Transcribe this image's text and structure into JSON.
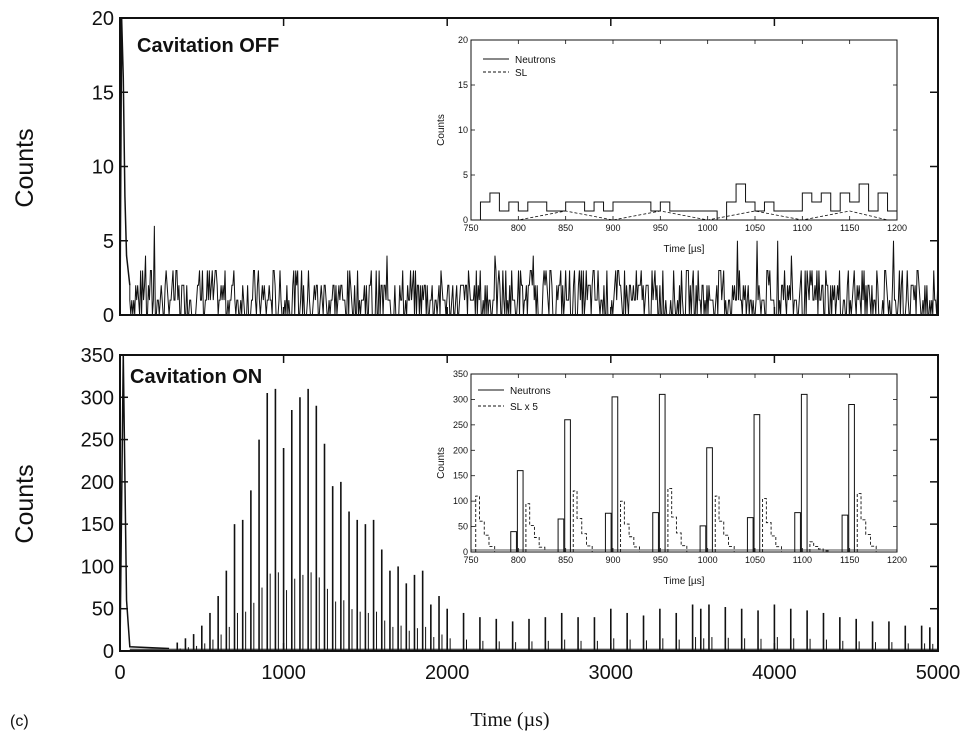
{
  "panel_label": "(c)",
  "colors": {
    "ink": "#111111",
    "background": "#ffffff"
  },
  "chart_data": [
    {
      "id": "off-main",
      "type": "line",
      "title": "Cavitation OFF",
      "xlabel": "",
      "ylabel": "Counts",
      "xlim": [
        0,
        5000
      ],
      "ylim": [
        0,
        20
      ],
      "x_ticks": [
        0,
        1000,
        2000,
        3000,
        4000,
        5000
      ],
      "y_ticks": [
        0,
        5,
        10,
        15,
        20
      ],
      "x_tick_labels_shown": false,
      "series": [
        {
          "style": "solid",
          "description_values": {
            "x": [
              0,
              10,
              20,
              30,
              40,
              50,
              60,
              80,
              100,
              150,
              200,
              220,
              250,
              300,
              400,
              500,
              600,
              700,
              800,
              900,
              1000,
              1500,
              2000,
              2500,
              3000,
              3500,
              4000,
              4500,
              5000
            ],
            "y": [
              0,
              20,
              16,
              8,
              4,
              3,
              2,
              2,
              1,
              2,
              3,
              6,
              2,
              2,
              1,
              2,
              2,
              1,
              2,
              1,
              2,
              1,
              2,
              1,
              2,
              1,
              2,
              1,
              1
            ]
          }
        }
      ]
    },
    {
      "id": "off-inset",
      "type": "line",
      "title": "",
      "xlabel": "Time [µs]",
      "ylabel": "Counts",
      "xlim": [
        750,
        1200
      ],
      "ylim": [
        0,
        20
      ],
      "x_ticks": [
        750,
        800,
        850,
        900,
        950,
        1000,
        1050,
        1100,
        1150,
        1200
      ],
      "y_ticks": [
        0,
        5,
        10,
        15,
        20
      ],
      "legend": {
        "placement": "top-left",
        "entries": [
          "Neutrons",
          "SL"
        ]
      },
      "series": [
        {
          "name": "Neutrons",
          "style": "solid",
          "x": [
            760,
            770,
            780,
            790,
            800,
            810,
            820,
            830,
            840,
            850,
            860,
            870,
            880,
            890,
            900,
            910,
            920,
            930,
            940,
            950,
            960,
            970,
            980,
            990,
            1000,
            1010,
            1020,
            1030,
            1040,
            1050,
            1060,
            1070,
            1080,
            1090,
            1100,
            1110,
            1120,
            1130,
            1140,
            1150,
            1160,
            1170,
            1180,
            1190
          ],
          "y": [
            2,
            3,
            1,
            2,
            1,
            2,
            2,
            1,
            1,
            2,
            2,
            1,
            2,
            1,
            2,
            2,
            2,
            2,
            1,
            2,
            1,
            1,
            1,
            1,
            1,
            0,
            2,
            4,
            2,
            1,
            2,
            1,
            1,
            1,
            3,
            2,
            3,
            1,
            3,
            2,
            4,
            1,
            3,
            1
          ]
        },
        {
          "name": "SL",
          "style": "dashed",
          "x": [
            760,
            800,
            850,
            900,
            950,
            1000,
            1050,
            1100,
            1150,
            1190
          ],
          "y": [
            0,
            0,
            1,
            0,
            1,
            0,
            1,
            0,
            1,
            0
          ]
        }
      ]
    },
    {
      "id": "on-main",
      "type": "bar",
      "title": "Cavitation ON",
      "xlabel": "Time (µs)",
      "ylabel": "Counts",
      "xlim": [
        0,
        5000
      ],
      "ylim": [
        0,
        350
      ],
      "x_ticks": [
        0,
        1000,
        2000,
        3000,
        4000,
        5000
      ],
      "y_ticks": [
        0,
        50,
        100,
        150,
        200,
        250,
        300,
        350
      ],
      "series": [
        {
          "name": "",
          "style": "solid",
          "spike_x": [
            350,
            400,
            450,
            500,
            550,
            600,
            650,
            700,
            750,
            800,
            850,
            900,
            950,
            1000,
            1050,
            1100,
            1150,
            1200,
            1250,
            1300,
            1350,
            1400,
            1450,
            1500,
            1550,
            1600,
            1650,
            1700,
            1750,
            1800,
            1850,
            1900,
            1950,
            2000,
            2100,
            2200,
            2300,
            2400,
            2500,
            2600,
            2700,
            2800,
            2900,
            3000,
            3100,
            3200,
            3300,
            3400,
            3500,
            3550,
            3600,
            3700,
            3800,
            3900,
            4000,
            4100,
            4200,
            4300,
            4400,
            4500,
            4600,
            4700,
            4800,
            4900,
            4950
          ],
          "spike_y": [
            10,
            15,
            20,
            30,
            45,
            65,
            95,
            150,
            155,
            190,
            250,
            305,
            310,
            240,
            285,
            300,
            310,
            290,
            245,
            195,
            200,
            165,
            155,
            150,
            155,
            120,
            95,
            100,
            80,
            90,
            95,
            55,
            65,
            50,
            45,
            40,
            38,
            35,
            38,
            40,
            45,
            40,
            40,
            50,
            45,
            42,
            50,
            45,
            55,
            50,
            55,
            52,
            50,
            48,
            55,
            50,
            48,
            45,
            40,
            38,
            35,
            35,
            30,
            30,
            28
          ]
        }
      ]
    },
    {
      "id": "on-inset",
      "type": "bar",
      "title": "",
      "xlabel": "Time [µs]",
      "ylabel": "Counts",
      "xlim": [
        750,
        1200
      ],
      "ylim": [
        0,
        350
      ],
      "x_ticks": [
        750,
        800,
        850,
        900,
        950,
        1000,
        1050,
        1100,
        1150,
        1200
      ],
      "y_ticks": [
        0,
        50,
        100,
        150,
        200,
        250,
        300,
        350
      ],
      "legend": {
        "placement": "top-left",
        "entries": [
          "Neutrons",
          "SL x 5"
        ]
      },
      "series": [
        {
          "name": "Neutrons",
          "style": "solid",
          "x": [
            800,
            850,
            900,
            950,
            1000,
            1050,
            1100,
            1150
          ],
          "y": [
            160,
            260,
            305,
            310,
            205,
            270,
            310,
            290
          ]
        },
        {
          "name": "SL x 5",
          "style": "dashed",
          "x": [
            755,
            808,
            858,
            908,
            958,
            1008,
            1058,
            1108,
            1158
          ],
          "y": [
            110,
            95,
            120,
            100,
            125,
            110,
            105,
            20,
            115
          ]
        }
      ]
    }
  ],
  "labels": {
    "off_title": "Cavitation OFF",
    "on_title": "Cavitation ON",
    "ylabel_main": "Counts",
    "xlabel_main": "Time (µs)",
    "inset_ylabel": "Counts",
    "inset_xlabel": "Time [µs]",
    "off_legend_1": "Neutrons",
    "off_legend_2": "SL",
    "on_legend_1": "Neutrons",
    "on_legend_2": "SL x 5"
  }
}
